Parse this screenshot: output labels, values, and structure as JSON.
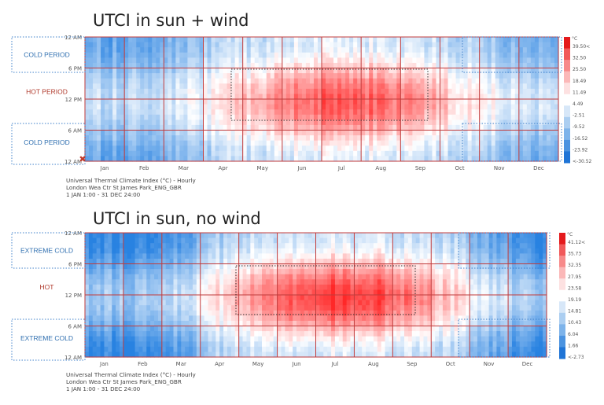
{
  "chart_data": [
    {
      "type": "heatmap",
      "title": "UTCI in sun + wind",
      "metric": "Universal Thermal Climate Index (°C) - Hourly",
      "location": "London Wea Ctr St James Park_ENG_GBR",
      "period": "1 JAN 1:00 - 31 DEC 24:00",
      "x_tick_labels": [
        "Jan",
        "Feb",
        "Mar",
        "Apr",
        "May",
        "Jun",
        "Jul",
        "Aug",
        "Sep",
        "Oct",
        "Nov",
        "Dec"
      ],
      "y_tick_labels": [
        "12 AM",
        "6 PM",
        "12 PM",
        "6 AM",
        "12 AM"
      ],
      "legend_unit": "°C",
      "legend_labels": [
        "39.50<",
        "32.50",
        "25.50",
        "18.49",
        "11.49",
        "4.49",
        "-2.51",
        "-9.52",
        "-16.52",
        "-23.92",
        "<-30.52"
      ],
      "regions": [
        {
          "label": "COLD PERIOD"
        },
        {
          "label": "HOT PERIOD"
        },
        {
          "label": "COLD PERIOD"
        }
      ]
    },
    {
      "type": "heatmap",
      "title": "UTCI in sun, no wind",
      "metric": "Universal Thermal Climate Index (°C) - Hourly",
      "location": "London Wea Ctr St James Park_ENG_GBR",
      "period": "1 JAN 1:00 - 31 DEC 24:00",
      "x_tick_labels": [
        "Jan",
        "Feb",
        "Mar",
        "Apr",
        "May",
        "Jun",
        "Jul",
        "Aug",
        "Sep",
        "Oct",
        "Nov",
        "Dec"
      ],
      "y_tick_labels": [
        "12 AM",
        "6 PM",
        "12 PM",
        "6 AM",
        "12 AM"
      ],
      "legend_unit": "°C",
      "legend_labels": [
        "41.12<",
        "35.73",
        "32.35",
        "27.95",
        "23.58",
        "19.19",
        "14.81",
        "10.43",
        "6.04",
        "1.66",
        "<-2.73"
      ],
      "regions": [
        {
          "label": "EXTREME COLD"
        },
        {
          "label": "HOT"
        },
        {
          "label": "EXTREME COLD"
        }
      ]
    }
  ],
  "colors": {
    "hot_label": "#b0392b",
    "cold_label": "#2f6fb0",
    "grid": "#c23b3b",
    "cold_box": "#3d7fc9",
    "hot_box": "#333333",
    "scale": [
      "#e41a1c",
      "#f1595a",
      "#f78a8a",
      "#fbb8b8",
      "#fde1e1",
      "#ffffff",
      "#d7e7f8",
      "#abcef1",
      "#7db3ea",
      "#4b93e0",
      "#1f74d6"
    ]
  }
}
